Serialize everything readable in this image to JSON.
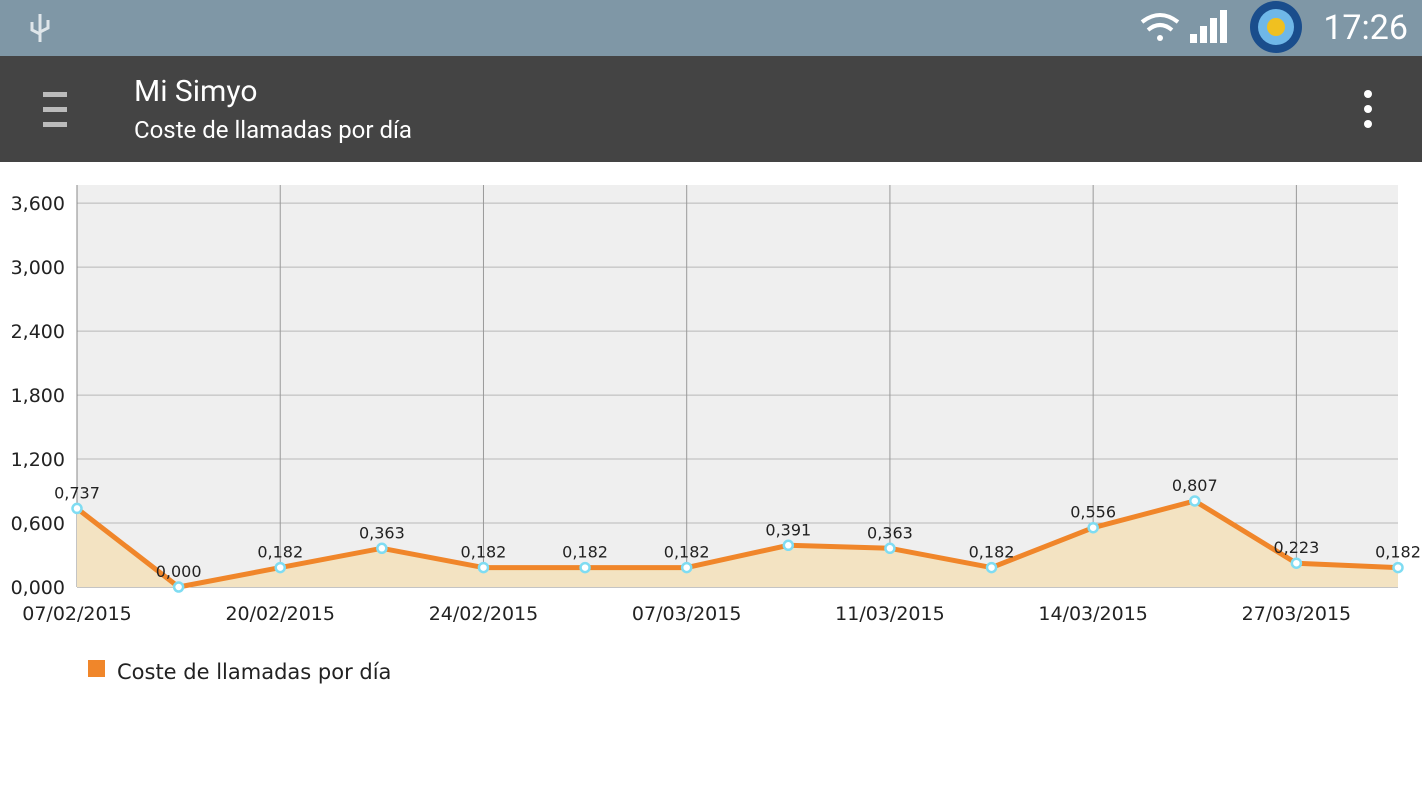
{
  "status_bar": {
    "time": "17:26"
  },
  "app_bar": {
    "title": "Mi Simyo",
    "subtitle": "Coste de llamadas por día"
  },
  "chart_data": {
    "type": "line",
    "categories": [
      "07/02/2015",
      null,
      "20/02/2015",
      null,
      "24/02/2015",
      null,
      "07/03/2015",
      null,
      "11/03/2015",
      null,
      "14/03/2015",
      null,
      "27/03/2015",
      null
    ],
    "series": [
      {
        "name": "Coste de llamadas por día",
        "color": "#f0862a",
        "area_color": "#f3e3c2",
        "marker_color": "#7fdcf2",
        "values": [
          0.737,
          0,
          0.182,
          0.363,
          0.182,
          0.182,
          0.182,
          0.391,
          0.363,
          0.182,
          0.556,
          0.807,
          0.223,
          0.182
        ],
        "value_labels": [
          "0,737",
          "0,000",
          "0,182",
          "0,363",
          "0,182",
          "0,182",
          "0,182",
          "0,391",
          "0,363",
          "0,182",
          "0,556",
          "0,807",
          "0,223",
          "0,182"
        ]
      }
    ],
    "ylim": [
      0,
      3.77
    ],
    "yticks": [
      {
        "value": 0,
        "label": "0,000"
      },
      {
        "value": 0.6,
        "label": "0,600"
      },
      {
        "value": 1.2,
        "label": "1,200"
      },
      {
        "value": 1.8,
        "label": "1,800"
      },
      {
        "value": 2.4,
        "label": "2,400"
      },
      {
        "value": 3.0,
        "label": "3,000"
      },
      {
        "value": 3.6,
        "label": "3,600"
      }
    ],
    "grid": true,
    "legend": "bottom-left"
  }
}
